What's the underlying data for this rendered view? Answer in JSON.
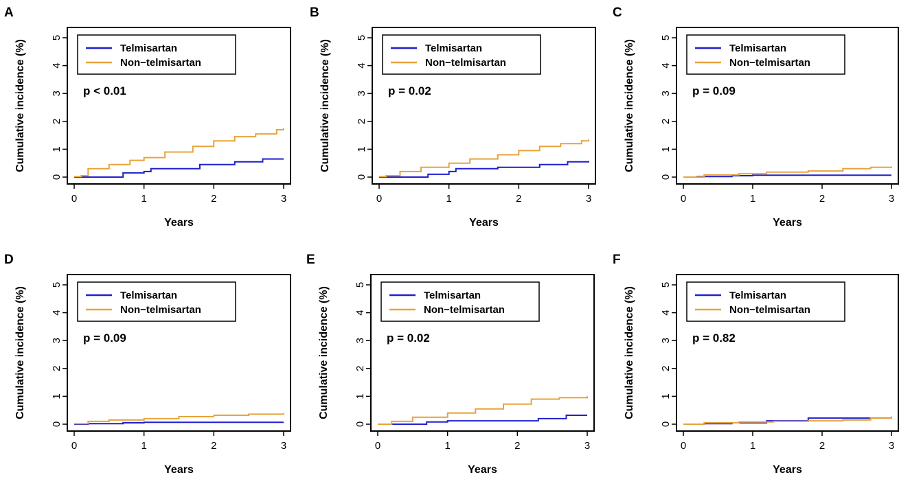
{
  "colors": {
    "telmisartan": "#1f1fd0",
    "non_telmisartan": "#e8a33d"
  },
  "chart_data": [
    {
      "panel": "A",
      "type": "line",
      "xlabel": "Years",
      "ylabel": "Cumulative incidence (%)",
      "xlim": [
        0,
        3
      ],
      "ylim": [
        0,
        5
      ],
      "xticks": [
        "0",
        "1",
        "2",
        "3"
      ],
      "yticks": [
        "0",
        "1",
        "2",
        "3",
        "4",
        "5"
      ],
      "annotation": "p < 0.01",
      "legend": [
        "Telmisartan",
        "Non−telmisartan"
      ],
      "series": [
        {
          "name": "Telmisartan",
          "x": [
            0,
            0.7,
            1.0,
            1.1,
            1.8,
            2.3,
            2.7,
            3.0
          ],
          "y": [
            0,
            0.15,
            0.2,
            0.3,
            0.45,
            0.55,
            0.65,
            0.65
          ]
        },
        {
          "name": "Non−telmisartan",
          "x": [
            0,
            0.1,
            0.2,
            0.5,
            0.8,
            1.0,
            1.3,
            1.7,
            2.0,
            2.3,
            2.6,
            2.9,
            3.0
          ],
          "y": [
            0.02,
            0.05,
            0.3,
            0.45,
            0.6,
            0.7,
            0.9,
            1.1,
            1.3,
            1.45,
            1.55,
            1.7,
            1.75
          ]
        }
      ]
    },
    {
      "panel": "B",
      "type": "line",
      "xlabel": "Years",
      "ylabel": "Cumulative incidence (%)",
      "xlim": [
        0,
        3
      ],
      "ylim": [
        0,
        5
      ],
      "xticks": [
        "0",
        "1",
        "2",
        "3"
      ],
      "yticks": [
        "0",
        "1",
        "2",
        "3",
        "4",
        "5"
      ],
      "annotation": "p = 0.02",
      "legend": [
        "Telmisartan",
        "Non−telmisartan"
      ],
      "series": [
        {
          "name": "Telmisartan",
          "x": [
            0,
            0.7,
            1.0,
            1.1,
            1.7,
            2.3,
            2.7,
            3.0
          ],
          "y": [
            0,
            0.1,
            0.2,
            0.3,
            0.35,
            0.45,
            0.55,
            0.58
          ]
        },
        {
          "name": "Non−telmisartan",
          "x": [
            0,
            0.1,
            0.3,
            0.6,
            1.0,
            1.3,
            1.7,
            2.0,
            2.3,
            2.6,
            2.9,
            3.0
          ],
          "y": [
            0.02,
            0.05,
            0.2,
            0.35,
            0.5,
            0.65,
            0.8,
            0.95,
            1.1,
            1.2,
            1.3,
            1.35
          ]
        }
      ]
    },
    {
      "panel": "C",
      "type": "line",
      "xlabel": "Years",
      "ylabel": "Cumulative incidence (%)",
      "xlim": [
        0,
        3
      ],
      "ylim": [
        0,
        5
      ],
      "xticks": [
        "0",
        "1",
        "2",
        "3"
      ],
      "yticks": [
        "0",
        "1",
        "2",
        "3",
        "4",
        "5"
      ],
      "annotation": "p = 0.09",
      "legend": [
        "Telmisartan",
        "Non−telmisartan"
      ],
      "series": [
        {
          "name": "Telmisartan",
          "x": [
            0,
            0.2,
            0.7,
            1.0,
            3.0
          ],
          "y": [
            0,
            0.02,
            0.05,
            0.07,
            0.07
          ]
        },
        {
          "name": "Non−telmisartan",
          "x": [
            0,
            0.3,
            0.8,
            1.2,
            1.8,
            2.3,
            2.7,
            3.0
          ],
          "y": [
            0,
            0.08,
            0.12,
            0.18,
            0.22,
            0.3,
            0.35,
            0.38
          ]
        }
      ]
    },
    {
      "panel": "D",
      "type": "line",
      "xlabel": "Years",
      "ylabel": "Cumulative incidence (%)",
      "xlim": [
        0,
        3
      ],
      "ylim": [
        0,
        5
      ],
      "xticks": [
        "0",
        "1",
        "2",
        "3"
      ],
      "yticks": [
        "0",
        "1",
        "2",
        "3",
        "4",
        "5"
      ],
      "annotation": "p = 0.09",
      "legend": [
        "Telmisartan",
        "Non−telmisartan"
      ],
      "series": [
        {
          "name": "Telmisartan",
          "x": [
            0,
            0.2,
            0.7,
            1.0,
            3.0
          ],
          "y": [
            0,
            0.02,
            0.05,
            0.07,
            0.07
          ]
        },
        {
          "name": "Non−telmisartan",
          "x": [
            0,
            0.2,
            0.5,
            1.0,
            1.5,
            2.0,
            2.5,
            3.0
          ],
          "y": [
            0.02,
            0.1,
            0.15,
            0.2,
            0.27,
            0.32,
            0.36,
            0.4
          ]
        }
      ]
    },
    {
      "panel": "E",
      "type": "line",
      "xlabel": "Years",
      "ylabel": "Cumulative incidence (%)",
      "xlim": [
        0,
        3
      ],
      "ylim": [
        0,
        5
      ],
      "xticks": [
        "0",
        "1",
        "2",
        "3"
      ],
      "yticks": [
        "0",
        "1",
        "2",
        "3",
        "4",
        "5"
      ],
      "annotation": "p = 0.02",
      "legend": [
        "Telmisartan",
        "Non−telmisartan"
      ],
      "series": [
        {
          "name": "Telmisartan",
          "x": [
            0,
            0.7,
            1.0,
            2.3,
            2.7,
            3.0
          ],
          "y": [
            0,
            0.08,
            0.12,
            0.2,
            0.32,
            0.32
          ]
        },
        {
          "name": "Non−telmisartan",
          "x": [
            0,
            0.2,
            0.5,
            1.0,
            1.4,
            1.8,
            2.2,
            2.6,
            3.0
          ],
          "y": [
            0,
            0.1,
            0.25,
            0.4,
            0.55,
            0.72,
            0.9,
            0.95,
            1.0
          ]
        }
      ]
    },
    {
      "panel": "F",
      "type": "line",
      "xlabel": "Years",
      "ylabel": "Cumulative incidence (%)",
      "xlim": [
        0,
        3
      ],
      "ylim": [
        0,
        5
      ],
      "xticks": [
        "0",
        "1",
        "2",
        "3"
      ],
      "yticks": [
        "0",
        "1",
        "2",
        "3",
        "4",
        "5"
      ],
      "annotation": "p = 0.82",
      "legend": [
        "Telmisartan",
        "Non−telmisartan"
      ],
      "series": [
        {
          "name": "Telmisartan",
          "x": [
            0,
            0.3,
            0.7,
            1.2,
            1.8,
            2.5,
            3.0
          ],
          "y": [
            0,
            0.02,
            0.05,
            0.12,
            0.22,
            0.22,
            0.22
          ]
        },
        {
          "name": "Non−telmisartan",
          "x": [
            0,
            0.3,
            0.8,
            1.3,
            1.8,
            2.3,
            2.7,
            3.0
          ],
          "y": [
            0,
            0.05,
            0.08,
            0.1,
            0.12,
            0.15,
            0.22,
            0.28
          ]
        }
      ]
    }
  ]
}
